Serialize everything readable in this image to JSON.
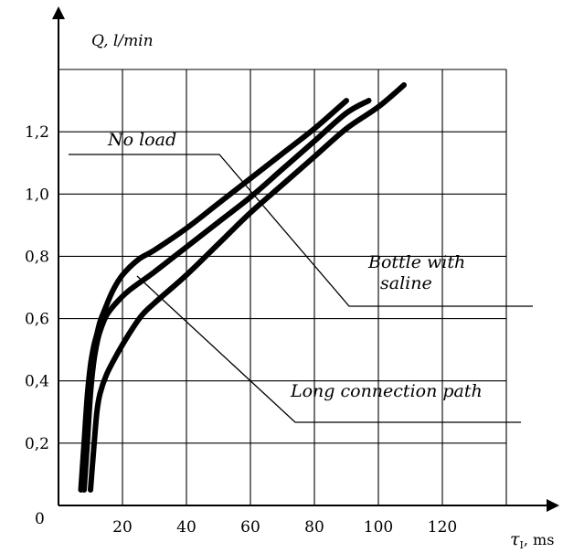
{
  "chart_data": {
    "type": "line",
    "ylabel": "Q, l/min",
    "xlabel_symbol": "τ",
    "xlabel_subscript": "I",
    "xlabel_unit": ", ms",
    "x_ticks": [
      "20",
      "40",
      "60",
      "80",
      "100",
      "120"
    ],
    "y_ticks": [
      "0,2",
      "0,4",
      "0,6",
      "0,8",
      "1,0",
      "1,2"
    ],
    "origin_label": "0",
    "xlim": [
      0,
      140
    ],
    "ylim": [
      0,
      1.4
    ],
    "grid": true,
    "series": [
      {
        "x": [
          7,
          8,
          9,
          10,
          11,
          12,
          13,
          14.5,
          17,
          20,
          25,
          30,
          40,
          50,
          60,
          70,
          80,
          90
        ],
        "y": [
          0.05,
          0.2,
          0.35,
          0.45,
          0.51,
          0.55,
          0.59,
          0.63,
          0.69,
          0.74,
          0.79,
          0.82,
          0.89,
          0.97,
          1.05,
          1.13,
          1.21,
          1.3
        ]
      },
      {
        "x": [
          8,
          9,
          10,
          11,
          12,
          13,
          15,
          18,
          22,
          30,
          40,
          50,
          60,
          70,
          80,
          90,
          97
        ],
        "y": [
          0.05,
          0.2,
          0.36,
          0.46,
          0.52,
          0.56,
          0.61,
          0.65,
          0.69,
          0.75,
          0.83,
          0.91,
          0.99,
          1.08,
          1.17,
          1.26,
          1.3
        ]
      },
      {
        "x": [
          10,
          11,
          12,
          13,
          15,
          18,
          22,
          26,
          30,
          40,
          50,
          60,
          70,
          80,
          90,
          100,
          108
        ],
        "y": [
          0.05,
          0.18,
          0.3,
          0.36,
          0.42,
          0.48,
          0.55,
          0.61,
          0.65,
          0.74,
          0.84,
          0.94,
          1.03,
          1.12,
          1.21,
          1.28,
          1.35
        ]
      }
    ],
    "annotations": [
      {
        "lines": [
          "No load"
        ]
      },
      {
        "lines": [
          "Bottle with",
          "saline"
        ]
      },
      {
        "lines": [
          "Long connection path"
        ]
      }
    ]
  }
}
